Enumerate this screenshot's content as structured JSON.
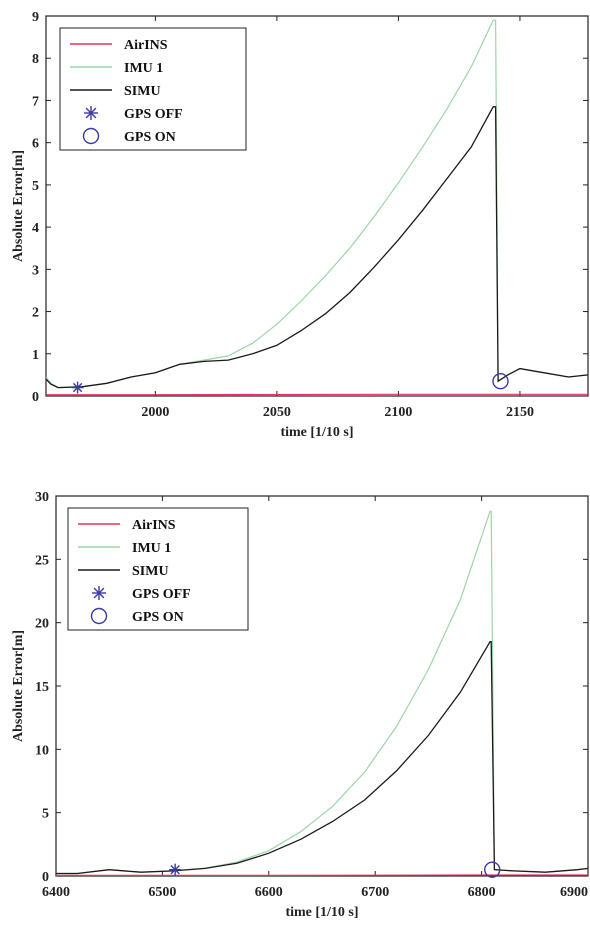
{
  "chart_data": [
    {
      "type": "line",
      "title": "",
      "xlabel": "time [1/10 s]",
      "ylabel": "Absolute Error[m]",
      "xlim": [
        1955,
        2178
      ],
      "ylim": [
        0,
        9
      ],
      "xticks": [
        2000,
        2050,
        2100,
        2150
      ],
      "yticks": [
        0,
        1,
        2,
        3,
        4,
        5,
        6,
        7,
        8,
        9
      ],
      "legend_position": "top-left",
      "series": [
        {
          "name": "AirINS",
          "color": "#e8335c",
          "x": [
            1955,
            2000,
            2100,
            2178
          ],
          "y": [
            0.03,
            0.03,
            0.04,
            0.04
          ]
        },
        {
          "name": "IMU 1",
          "color": "#9cd6a6",
          "x": [
            1955,
            1957,
            1960,
            1970,
            1980,
            1990,
            2000,
            2010,
            2020,
            2030,
            2040,
            2050,
            2060,
            2070,
            2080,
            2090,
            2100,
            2110,
            2120,
            2130,
            2139,
            2140,
            2141,
            2145,
            2150,
            2160,
            2170,
            2178
          ],
          "y": [
            0.45,
            0.3,
            0.2,
            0.22,
            0.3,
            0.45,
            0.55,
            0.75,
            0.85,
            0.95,
            1.25,
            1.7,
            2.25,
            2.85,
            3.5,
            4.25,
            5.05,
            5.9,
            6.8,
            7.8,
            8.9,
            8.9,
            0.35,
            0.5,
            0.65,
            0.55,
            0.45,
            0.5
          ]
        },
        {
          "name": "SIMU",
          "color": "#1a1a1a",
          "x": [
            1955,
            1957,
            1960,
            1970,
            1980,
            1990,
            2000,
            2010,
            2020,
            2030,
            2040,
            2050,
            2060,
            2070,
            2080,
            2090,
            2100,
            2110,
            2120,
            2130,
            2139,
            2140,
            2141,
            2145,
            2150,
            2160,
            2170,
            2178
          ],
          "y": [
            0.4,
            0.28,
            0.2,
            0.22,
            0.3,
            0.45,
            0.55,
            0.75,
            0.82,
            0.85,
            1.0,
            1.2,
            1.55,
            1.95,
            2.45,
            3.05,
            3.7,
            4.4,
            5.15,
            5.9,
            6.85,
            6.85,
            0.35,
            0.5,
            0.65,
            0.55,
            0.45,
            0.5
          ]
        }
      ],
      "markers": [
        {
          "name": "GPS OFF",
          "symbol": "asterisk",
          "color": "#3a3aa8",
          "x": 1968,
          "y": 0.2
        },
        {
          "name": "GPS ON",
          "symbol": "circle",
          "color": "#3a3aa8",
          "x": 2142,
          "y": 0.35
        }
      ]
    },
    {
      "type": "line",
      "title": "",
      "xlabel": "time [1/10 s]",
      "ylabel": "Absolute Error[m]",
      "xlim": [
        6400,
        6900
      ],
      "ylim": [
        0,
        30
      ],
      "xticks": [
        6400,
        6500,
        6600,
        6700,
        6800,
        6900
      ],
      "yticks": [
        0,
        5,
        10,
        15,
        20,
        25,
        30
      ],
      "legend_position": "top-left",
      "series": [
        {
          "name": "AirINS",
          "color": "#e8335c",
          "x": [
            6400,
            6600,
            6800,
            6900
          ],
          "y": [
            0.05,
            0.05,
            0.08,
            0.08
          ]
        },
        {
          "name": "IMU 1",
          "color": "#9cd6a6",
          "x": [
            6400,
            6420,
            6450,
            6480,
            6510,
            6540,
            6570,
            6600,
            6630,
            6660,
            6690,
            6720,
            6750,
            6780,
            6808,
            6809,
            6812,
            6830,
            6860,
            6890,
            6900
          ],
          "y": [
            0.2,
            0.2,
            0.5,
            0.3,
            0.4,
            0.6,
            1.1,
            2.0,
            3.5,
            5.5,
            8.2,
            11.8,
            16.3,
            21.8,
            28.8,
            28.8,
            0.5,
            0.4,
            0.3,
            0.5,
            0.6
          ]
        },
        {
          "name": "SIMU",
          "color": "#1a1a1a",
          "x": [
            6400,
            6420,
            6450,
            6480,
            6510,
            6540,
            6570,
            6600,
            6630,
            6660,
            6690,
            6720,
            6750,
            6780,
            6808,
            6809,
            6812,
            6830,
            6860,
            6890,
            6900
          ],
          "y": [
            0.2,
            0.2,
            0.5,
            0.3,
            0.4,
            0.6,
            1.0,
            1.8,
            2.9,
            4.3,
            6.0,
            8.3,
            11.1,
            14.5,
            18.5,
            18.5,
            0.5,
            0.4,
            0.3,
            0.5,
            0.6
          ]
        }
      ],
      "markers": [
        {
          "name": "GPS OFF",
          "symbol": "asterisk",
          "color": "#3a3aa8",
          "x": 6512,
          "y": 0.5
        },
        {
          "name": "GPS ON",
          "symbol": "circle",
          "color": "#3a3aa8",
          "x": 6810,
          "y": 0.5
        }
      ]
    }
  ]
}
